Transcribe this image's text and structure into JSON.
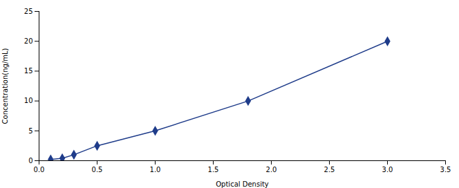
{
  "chart_data": {
    "type": "line",
    "xlabel": "Optical Density",
    "ylabel": "Concentration(ng/mL)",
    "x": [
      0.1,
      0.2,
      0.3,
      0.5,
      1.0,
      1.8,
      3.0
    ],
    "values": [
      0.2,
      0.4,
      1.0,
      2.5,
      5.0,
      10.0,
      20.0
    ],
    "color": "#1F3C8A",
    "marker": "diamond",
    "line_style": "solid",
    "grid": false,
    "xlim": [
      0,
      3.5
    ],
    "ylim": [
      0,
      25
    ],
    "xticks": [
      {
        "value": 0,
        "label": "0.0"
      },
      0.5,
      {
        "value": 1,
        "label": "1.0"
      },
      1.5,
      {
        "value": 2,
        "label": "2.0"
      },
      2.5,
      {
        "value": 3,
        "label": "3.0"
      },
      3.5
    ],
    "yticks": [
      0,
      5,
      10,
      15,
      20,
      25
    ]
  }
}
